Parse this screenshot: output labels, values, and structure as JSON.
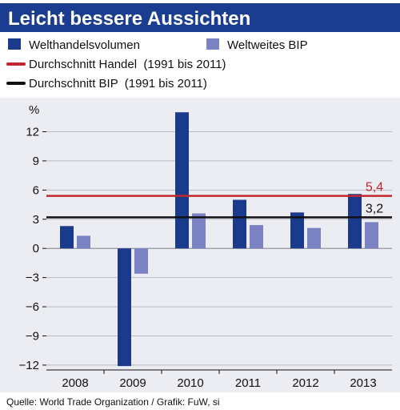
{
  "colors": {
    "title_band": "#1a3d8f",
    "panel_bg": "#ececf3",
    "trade": "#1a3b8c",
    "gdp": "#7b82c4",
    "avg_trade": "#c1272d",
    "avg_gdp": "#111111",
    "grid": "#b9b9c2"
  },
  "chart_data": {
    "type": "bar",
    "title": "Leicht bessere Aussichten",
    "ylabel": "%",
    "categories": [
      "2008",
      "2009",
      "2010",
      "2011",
      "2012",
      "2013"
    ],
    "series": [
      {
        "name": "Welthandelsvolumen",
        "values": [
          2.3,
          -12.1,
          14.0,
          5.0,
          3.7,
          5.6
        ]
      },
      {
        "name": "Weltweites BIP",
        "values": [
          1.3,
          -2.6,
          3.6,
          2.4,
          2.1,
          2.7
        ]
      }
    ],
    "reference_lines": [
      {
        "name": "Durchschnitt Handel  (1991 bis 2011)",
        "value": 5.4,
        "label": "5,4"
      },
      {
        "name": "Durchschnitt BIP  (1991 bis 2011)",
        "value": 3.2,
        "label": "3,2"
      }
    ],
    "ylim": [
      -12.5,
      15.5
    ],
    "yticks": [
      12,
      9,
      6,
      3,
      0,
      -3,
      -6,
      -9,
      -12
    ],
    "ytick_labels": [
      "12",
      "9",
      "6",
      "3",
      "0",
      "−3",
      "−6",
      "−9",
      "−12"
    ],
    "grid": true,
    "legend_position": "top-left",
    "source": "Quelle: World Trade Organization / Grafik: FuW, si"
  }
}
